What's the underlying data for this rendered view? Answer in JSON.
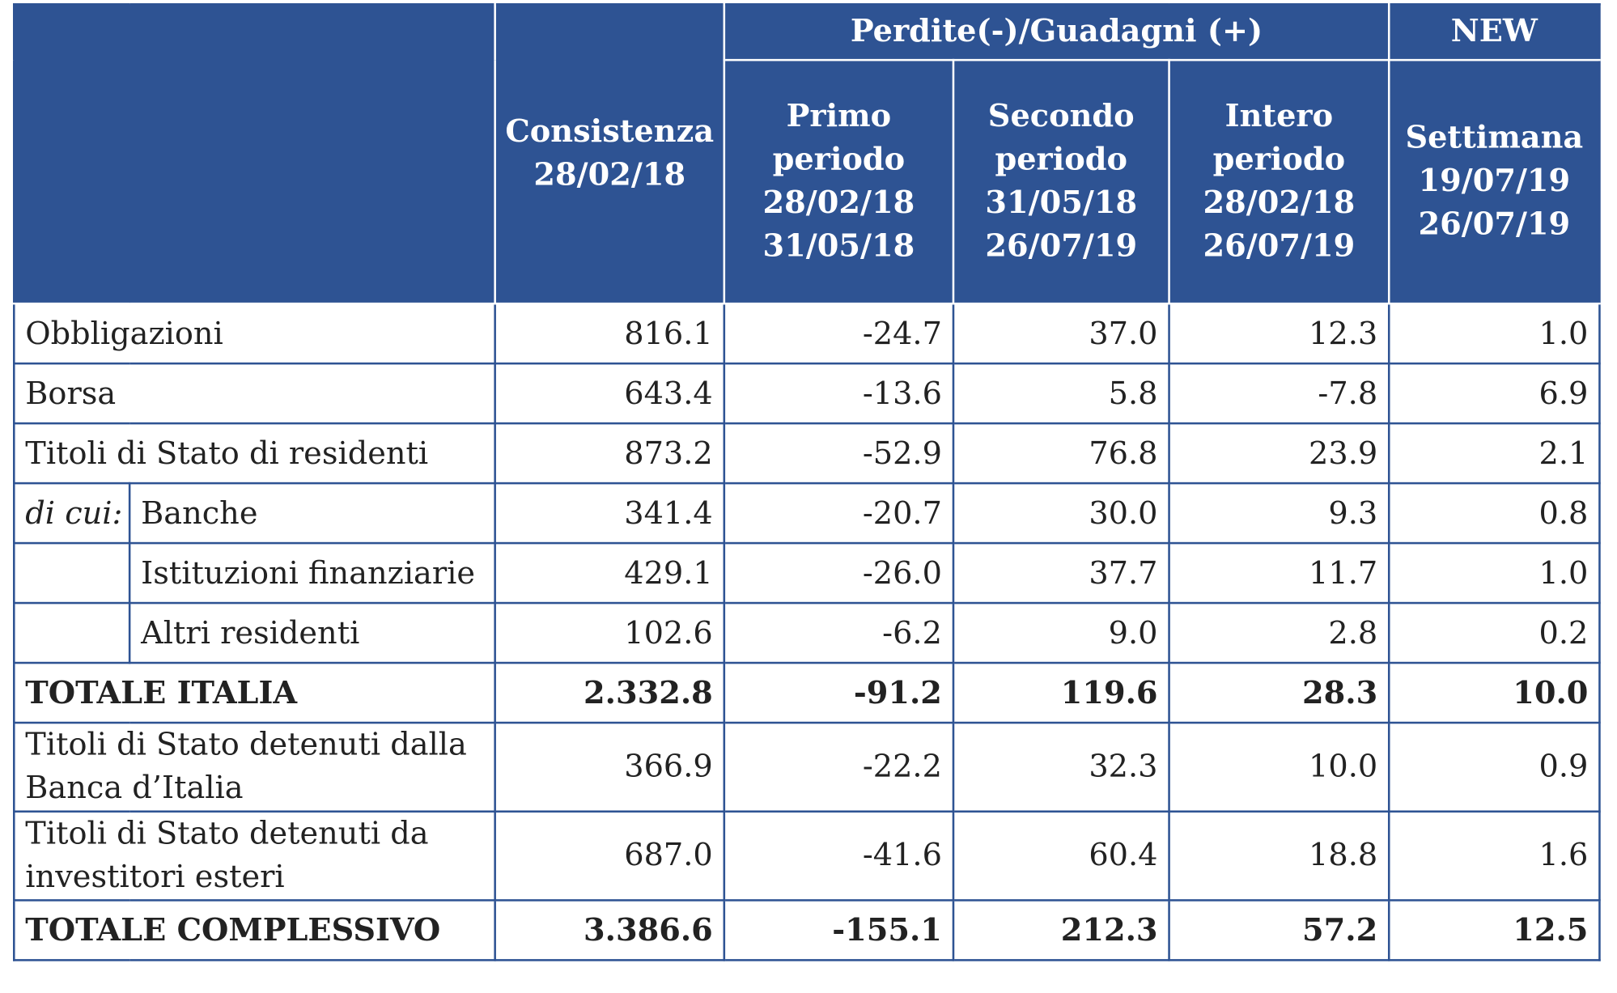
{
  "header": {
    "consistenza": [
      "Consistenza",
      "28/02/18"
    ],
    "group_label": "Perdite(-)/Guadagni (+)",
    "new_label": "NEW",
    "primo": [
      "Primo",
      "periodo",
      "28/02/18",
      "31/05/18"
    ],
    "secondo": [
      "Secondo",
      "periodo",
      "31/05/18",
      "26/07/19"
    ],
    "intero": [
      "Intero",
      "periodo",
      "28/02/18",
      "26/07/19"
    ],
    "settimana": [
      "Settimana",
      "19/07/19",
      "26/07/19"
    ]
  },
  "rows": [
    {
      "label": "Obbligazioni",
      "values": [
        "816.1",
        "-24.7",
        "37.0",
        "12.3",
        "1.0"
      ]
    },
    {
      "label": "Borsa",
      "values": [
        "643.4",
        "-13.6",
        "5.8",
        "-7.8",
        "6.9"
      ]
    },
    {
      "label": "Titoli di Stato di residenti",
      "values": [
        "873.2",
        "-52.9",
        "76.8",
        "23.9",
        "2.1"
      ]
    },
    {
      "prefix": "di cui:",
      "label": "Banche",
      "values": [
        "341.4",
        "-20.7",
        "30.0",
        "9.3",
        "0.8"
      ]
    },
    {
      "label": "Istituzioni finanziarie",
      "values": [
        "429.1",
        "-26.0",
        "37.7",
        "11.7",
        "1.0"
      ]
    },
    {
      "label": "Altri residenti",
      "values": [
        "102.6",
        "-6.2",
        "9.0",
        "2.8",
        "0.2"
      ]
    },
    {
      "label": "TOTALE ITALIA",
      "values": [
        "2.332.8",
        "-91.2",
        "119.6",
        "28.3",
        "10.0"
      ]
    },
    {
      "label": [
        "Titoli di Stato detenuti dalla",
        "Banca d’Italia"
      ],
      "values": [
        "366.9",
        "-22.2",
        "32.3",
        "10.0",
        "0.9"
      ]
    },
    {
      "label": [
        "Titoli di Stato detenuti da",
        "investitori esteri"
      ],
      "values": [
        "687.0",
        "-41.6",
        "60.4",
        "18.8",
        "1.6"
      ]
    },
    {
      "label": "TOTALE COMPLESSIVO",
      "values": [
        "3.386.6",
        "-155.1",
        "212.3",
        "57.2",
        "12.5"
      ]
    }
  ]
}
